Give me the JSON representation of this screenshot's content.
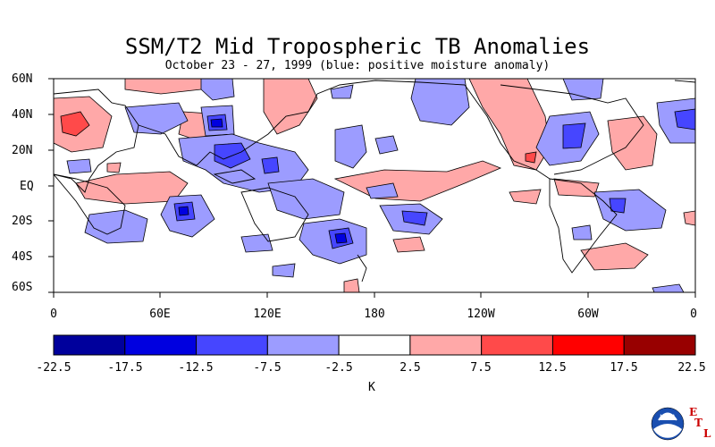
{
  "title": "SSM/T2 Mid Tropospheric TB Anomalies",
  "subtitle": "October 23 - 27, 1999 (blue: positive moisture anomaly)",
  "lat_labels": [
    "60N",
    "40N",
    "20N",
    "EQ",
    "20S",
    "40S",
    "60S"
  ],
  "lon_labels": [
    "0",
    "60E",
    "120E",
    "180",
    "120W",
    "60W",
    "0"
  ],
  "colorbar": {
    "ticks": [
      "-22.5",
      "-17.5",
      "-12.5",
      "-7.5",
      "-2.5",
      "2.5",
      "7.5",
      "12.5",
      "17.5",
      "22.5"
    ],
    "colors": [
      "#00009c",
      "#0000e0",
      "#4646ff",
      "#9c9cff",
      "#ffffff",
      "#ffa8a8",
      "#ff4a4a",
      "#ff0000",
      "#980000"
    ],
    "unit": "K"
  },
  "logo": {
    "name": "noaa-logo",
    "text": "NOAA",
    "lab_letters": [
      "E",
      "T",
      "L"
    ]
  }
}
